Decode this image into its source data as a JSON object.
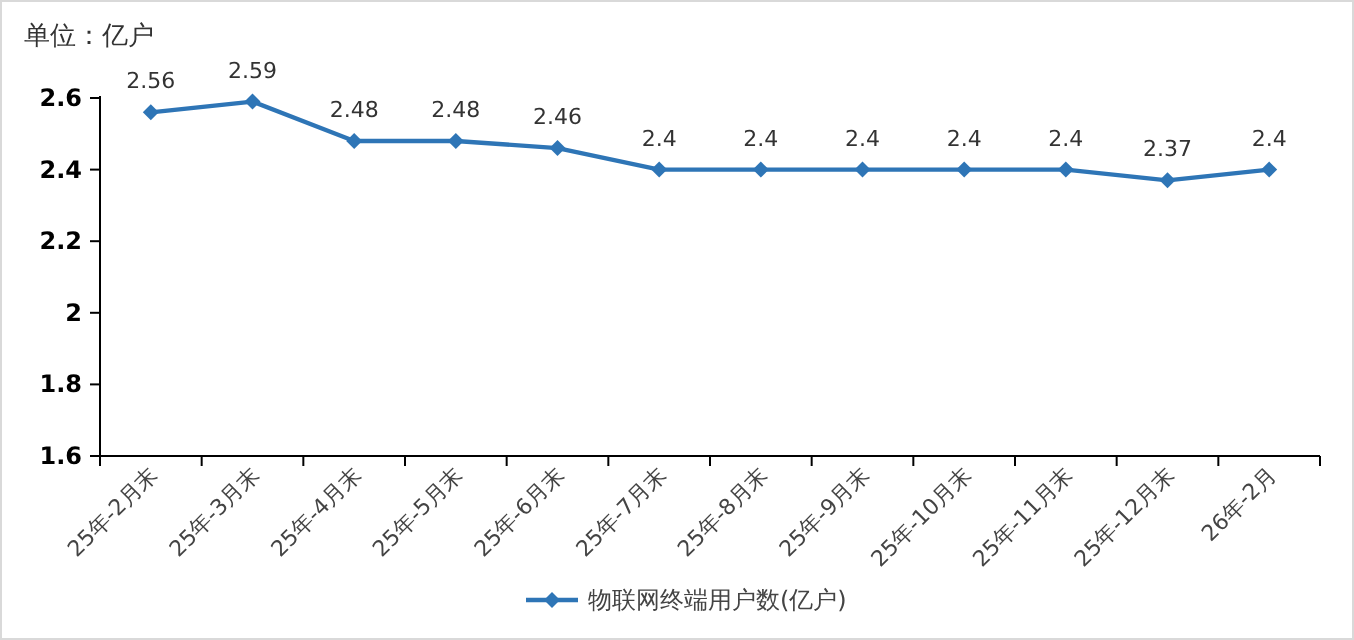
{
  "chart_data": {
    "type": "line",
    "ylabel": "单位：亿户",
    "categories": [
      "25年-2月末",
      "25年-3月末",
      "25年-4月末",
      "25年-5月末",
      "25年-6月末",
      "25年-7月末",
      "25年-8月末",
      "25年-9月末",
      "25年-10月末",
      "25年-11月末",
      "25年-12月末",
      "26年-2月"
    ],
    "series": [
      {
        "name": "物联网终端用户数(亿户)",
        "color": "#2e75b6",
        "values": [
          2.56,
          2.59,
          2.48,
          2.48,
          2.46,
          2.4,
          2.4,
          2.4,
          2.4,
          2.4,
          2.37,
          2.4
        ]
      }
    ],
    "ylim": [
      1.6,
      2.6
    ],
    "yticks": [
      1.6,
      1.8,
      2,
      2.2,
      2.4,
      2.6
    ],
    "data_labels": true,
    "legend": "bottom",
    "marker": "diamond",
    "line_style": "solid"
  }
}
